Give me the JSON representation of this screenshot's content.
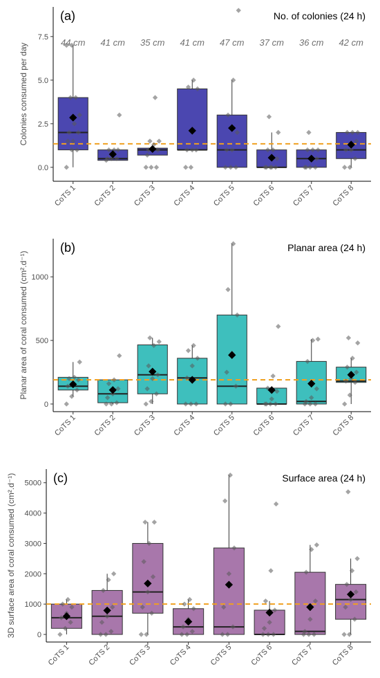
{
  "chart_data": [
    {
      "type": "box",
      "panel_label": "(a)",
      "title": "No. of colonies (24 h)",
      "ylabel": "Colonies consumed per day",
      "categories": [
        "CoTS 1",
        "CoTS 2",
        "CoTS 3",
        "CoTS 4",
        "CoTS 5",
        "CoTS 6",
        "CoTS 7",
        "CoTS 8"
      ],
      "sizes": [
        "44 cm",
        "41 cm",
        "35 cm",
        "41 cm",
        "47 cm",
        "37 cm",
        "36 cm",
        "42 cm"
      ],
      "yticks": [
        0,
        2.5,
        5,
        7.5
      ],
      "ytick_labels": [
        "0.0",
        "2.5",
        "5.0",
        "7.5"
      ],
      "ylim": [
        -0.8,
        9.2
      ],
      "reference_line": 1.35,
      "color": "#4b47b0",
      "boxes": [
        {
          "q1": 1.0,
          "median": 2.0,
          "q3": 4.0,
          "min": 0,
          "max": 7.0,
          "mean": 2.85,
          "points": [
            0,
            1,
            1,
            1.5,
            1.5,
            2,
            2,
            2.5,
            3,
            4,
            4,
            7,
            7
          ]
        },
        {
          "q1": 0.4,
          "median": 0.5,
          "q3": 1.0,
          "min": 0.4,
          "max": 1.0,
          "mean": 0.75,
          "points": [
            0.4,
            0.5,
            0.5,
            0.5,
            0.7,
            1,
            1,
            1,
            3
          ]
        },
        {
          "q1": 0.7,
          "median": 1.0,
          "q3": 1.1,
          "min": 0.7,
          "max": 1.1,
          "mean": 1.05,
          "points": [
            0,
            0,
            0,
            0.7,
            1,
            1,
            1,
            1.3,
            1.5,
            1.5,
            4
          ]
        },
        {
          "q1": 1.0,
          "median": 1.0,
          "q3": 4.5,
          "min": 1.0,
          "max": 5.0,
          "mean": 2.1,
          "points": [
            0,
            0,
            1,
            1,
            1,
            4.5,
            4.6,
            5
          ]
        },
        {
          "q1": 0.0,
          "median": 1.0,
          "q3": 3.0,
          "min": 0,
          "max": 5.0,
          "mean": 2.25,
          "points": [
            0,
            0,
            0,
            1,
            1,
            2,
            3,
            5,
            9
          ]
        },
        {
          "q1": 0.0,
          "median": 0.0,
          "q3": 1.0,
          "min": 0,
          "max": 2.0,
          "mean": 0.55,
          "points": [
            0,
            0,
            0,
            0,
            0,
            0.5,
            1,
            1,
            2,
            2.9
          ]
        },
        {
          "q1": 0.0,
          "median": 0.5,
          "q3": 1.0,
          "min": 0,
          "max": 1.0,
          "mean": 0.5,
          "points": [
            0,
            0,
            0,
            0,
            0.5,
            0.5,
            1,
            1,
            1,
            2
          ]
        },
        {
          "q1": 0.5,
          "median": 1.0,
          "q3": 2.0,
          "min": 0,
          "max": 2.0,
          "mean": 1.3,
          "points": [
            0,
            0,
            0.5,
            1,
            1,
            1.5,
            2,
            2,
            2
          ]
        }
      ]
    },
    {
      "type": "box",
      "panel_label": "(b)",
      "title": "Planar area (24 h)",
      "ylabel": "Planar area of coral consumed (cm².d⁻¹)",
      "categories": [
        "CoTS 1",
        "CoTS 2",
        "CoTS 3",
        "CoTS 4",
        "CoTS 5",
        "CoTS 6",
        "CoTS 7",
        "CoTS 8"
      ],
      "yticks": [
        0,
        500,
        1000
      ],
      "ytick_labels": [
        "0",
        "500",
        "1000"
      ],
      "ylim": [
        -60,
        1300
      ],
      "reference_line": 190,
      "color": "#3ebfbd",
      "boxes": [
        {
          "q1": 110,
          "median": 140,
          "q3": 210,
          "min": 60,
          "max": 330,
          "mean": 155,
          "points": [
            0,
            60,
            110,
            140,
            150,
            190,
            200,
            210,
            330
          ]
        },
        {
          "q1": 10,
          "median": 80,
          "q3": 190,
          "min": 0,
          "max": 190,
          "mean": 110,
          "points": [
            0,
            0,
            10,
            50,
            80,
            120,
            160,
            190,
            380
          ]
        },
        {
          "q1": 80,
          "median": 230,
          "q3": 465,
          "min": 0,
          "max": 520,
          "mean": 255,
          "points": [
            0,
            20,
            80,
            120,
            200,
            230,
            300,
            460,
            490,
            520
          ]
        },
        {
          "q1": 0,
          "median": 205,
          "q3": 360,
          "min": 0,
          "max": 460,
          "mean": 190,
          "points": [
            0,
            0,
            0,
            205,
            300,
            360,
            420,
            460
          ]
        },
        {
          "q1": 0,
          "median": 140,
          "q3": 700,
          "min": 0,
          "max": 1260,
          "mean": 385,
          "points": [
            0,
            0,
            140,
            250,
            400,
            700,
            900,
            1260
          ]
        },
        {
          "q1": 0,
          "median": 0,
          "q3": 125,
          "min": 0,
          "max": 125,
          "mean": 110,
          "points": [
            0,
            0,
            0,
            0,
            40,
            100,
            125,
            220,
            610
          ]
        },
        {
          "q1": 0,
          "median": 20,
          "q3": 335,
          "min": 0,
          "max": 510,
          "mean": 160,
          "points": [
            0,
            0,
            0,
            20,
            50,
            120,
            335,
            500,
            510
          ]
        },
        {
          "q1": 170,
          "median": 180,
          "q3": 290,
          "min": 0,
          "max": 360,
          "mean": 230,
          "points": [
            0,
            70,
            170,
            180,
            200,
            250,
            290,
            360,
            480,
            520
          ]
        }
      ]
    },
    {
      "type": "box",
      "panel_label": "(c)",
      "title": "Surface area (24 h)",
      "ylabel": "3D surface area of coral consumed (cm².d⁻¹)",
      "categories": [
        "CoTS 1",
        "CoTS 2",
        "CoTS 3",
        "CoTS 4",
        "CoTS 5",
        "CoTS 6",
        "CoTS 7",
        "CoTS 8"
      ],
      "yticks": [
        0,
        1000,
        2000,
        3000,
        4000,
        5000
      ],
      "ytick_labels": [
        "0",
        "1000",
        "2000",
        "3000",
        "4000",
        "5000"
      ],
      "ylim": [
        -250,
        5450
      ],
      "reference_line": 1000,
      "color": "#a877ab",
      "boxes": [
        {
          "q1": 200,
          "median": 550,
          "q3": 1000,
          "min": 0,
          "max": 1150,
          "mean": 600,
          "points": [
            0,
            200,
            400,
            550,
            700,
            900,
            1000,
            1150
          ]
        },
        {
          "q1": 0,
          "median": 600,
          "q3": 1450,
          "min": 0,
          "max": 2000,
          "mean": 790,
          "points": [
            0,
            0,
            100,
            400,
            600,
            900,
            1450,
            1800,
            2000
          ]
        },
        {
          "q1": 700,
          "median": 1400,
          "q3": 3000,
          "min": 0,
          "max": 3700,
          "mean": 1680,
          "points": [
            0,
            0,
            700,
            900,
            1400,
            1900,
            2400,
            3000,
            3700,
            3700
          ]
        },
        {
          "q1": 0,
          "median": 250,
          "q3": 850,
          "min": 0,
          "max": 1150,
          "mean": 420,
          "points": [
            0,
            0,
            100,
            250,
            500,
            850,
            1000,
            1150
          ]
        },
        {
          "q1": 0,
          "median": 250,
          "q3": 2850,
          "min": 0,
          "max": 5250,
          "mean": 1640,
          "points": [
            0,
            0,
            250,
            900,
            2000,
            2850,
            4400,
            5250
          ]
        },
        {
          "q1": 0,
          "median": 0,
          "q3": 800,
          "min": 0,
          "max": 1100,
          "mean": 720,
          "points": [
            0,
            0,
            0,
            200,
            400,
            800,
            1100,
            2100,
            4300
          ]
        },
        {
          "q1": 0,
          "median": 100,
          "q3": 2050,
          "min": 0,
          "max": 2950,
          "mean": 900,
          "points": [
            0,
            0,
            0,
            100,
            500,
            1100,
            2050,
            2800,
            2950
          ]
        },
        {
          "q1": 500,
          "median": 1150,
          "q3": 1650,
          "min": 0,
          "max": 2500,
          "mean": 1320,
          "points": [
            0,
            0,
            500,
            900,
            1150,
            1400,
            1650,
            2100,
            2500,
            4700
          ]
        }
      ]
    }
  ]
}
